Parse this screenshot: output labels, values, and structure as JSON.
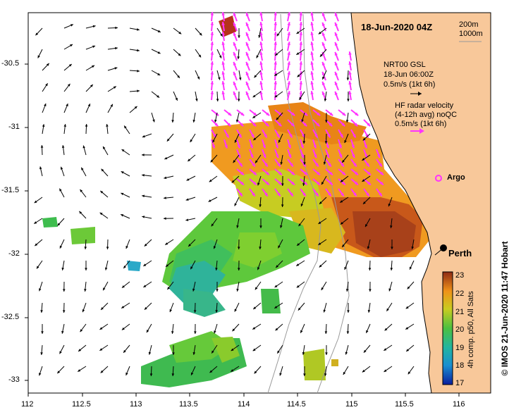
{
  "title": "18-Jun-2020 04Z",
  "scale": {
    "line1": "200m",
    "line2": "1000m"
  },
  "legend": {
    "gsl_line1": "NRT00 GSL",
    "gsl_line2": "18-Jun 06:00Z",
    "gsl_line3": "0.5m/s (1kt 6h)",
    "hf_line1": "HF radar velocity",
    "hf_line2": "(4-12h avg) noQC",
    "hf_line3": "0.5m/s (1kt 6h)"
  },
  "places": {
    "argo": "Argo",
    "perth": "Perth"
  },
  "colorbar": {
    "caption": "4h comp. p50, All Sats",
    "ticks": [
      "23",
      "22",
      "21",
      "20",
      "19",
      "18",
      "17"
    ]
  },
  "side_caption": "© IMOS 21-Jun-2020 11:47 Hobart",
  "axes": {
    "x_ticks": [
      "112",
      "112.5",
      "113",
      "113.5",
      "114",
      "114.5",
      "115",
      "115.5",
      "116"
    ],
    "y_ticks": [
      "-30.5",
      "-31",
      "-31.5",
      "-32",
      "-32.5",
      "-33"
    ]
  },
  "colors": {
    "land": "#f8c89a",
    "gsl_arrow": "#000000",
    "hf_arrow": "#ff33ff",
    "perth_dot": "#000000"
  }
}
